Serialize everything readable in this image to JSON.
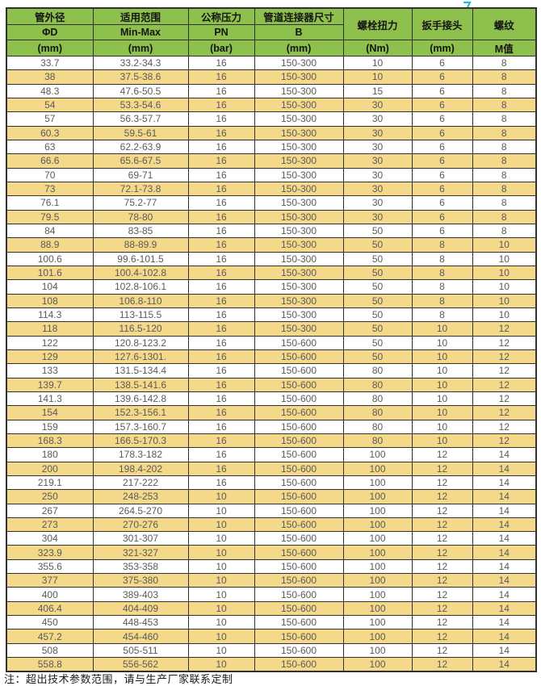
{
  "page": {
    "note": "注：超出技术参数范围，请与生产厂家联系定制"
  },
  "colors": {
    "header_green": "#8dc04d",
    "stripe_tan": "#f5d98a",
    "border_dark": "#303030",
    "body_text_gray": "#5a5a5a",
    "cursor_cyan": "#2bb7dc"
  },
  "icons": {
    "cursor_mark": "cyan-cursor-fragment"
  },
  "table": {
    "header": {
      "groups": [
        {
          "title": "管外径",
          "sub": "ΦD",
          "unit": "(mm)"
        },
        {
          "title": "适用范围",
          "sub": "Min-Max",
          "unit": "(mm)"
        },
        {
          "title": "公称压力",
          "sub": "PN",
          "unit": "(bar)"
        },
        {
          "title": "管道连接器尺寸",
          "sub": "B",
          "unit": "(mm)"
        },
        {
          "title": "螺栓扭力",
          "sub": "",
          "unit": "(Nm)"
        },
        {
          "title": "扳手接头",
          "sub": "",
          "unit": "(mm)"
        },
        {
          "title": "螺纹",
          "sub": "",
          "unit": "M值"
        }
      ]
    },
    "rows": [
      [
        "33.7",
        "33.2-34.3",
        "16",
        "150-300",
        "10",
        "6",
        "8"
      ],
      [
        "38",
        "37.5-38.6",
        "16",
        "150-300",
        "10",
        "6",
        "8"
      ],
      [
        "48.3",
        "47.6-50.5",
        "16",
        "150-300",
        "15",
        "6",
        "8"
      ],
      [
        "54",
        "53.3-54.6",
        "16",
        "150-300",
        "30",
        "6",
        "8"
      ],
      [
        "57",
        "56.3-57.7",
        "16",
        "150-300",
        "30",
        "6",
        "8"
      ],
      [
        "60.3",
        "59.5-61",
        "16",
        "150-300",
        "30",
        "6",
        "8"
      ],
      [
        "63",
        "62.2-63.9",
        "16",
        "150-300",
        "30",
        "6",
        "8"
      ],
      [
        "66.6",
        "65.6-67.5",
        "16",
        "150-300",
        "30",
        "6",
        "8"
      ],
      [
        "70",
        "69-71",
        "16",
        "150-300",
        "30",
        "6",
        "8"
      ],
      [
        "73",
        "72.1-73.8",
        "16",
        "150-300",
        "30",
        "6",
        "8"
      ],
      [
        "76.1",
        "75.2-77",
        "16",
        "150-300",
        "30",
        "6",
        "8"
      ],
      [
        "79.5",
        "78-80",
        "16",
        "150-300",
        "30",
        "6",
        "8"
      ],
      [
        "84",
        "83-85",
        "16",
        "150-300",
        "50",
        "6",
        "8"
      ],
      [
        "88.9",
        "88-89.9",
        "16",
        "150-300",
        "50",
        "8",
        "10"
      ],
      [
        "100.6",
        "99.6-101.5",
        "16",
        "150-300",
        "50",
        "8",
        "10"
      ],
      [
        "101.6",
        "100.4-102.8",
        "16",
        "150-300",
        "50",
        "8",
        "10"
      ],
      [
        "104",
        "102.8-106.1",
        "16",
        "150-300",
        "50",
        "8",
        "10"
      ],
      [
        "108",
        "106.8-110",
        "16",
        "150-300",
        "50",
        "8",
        "10"
      ],
      [
        "114.3",
        "113-115.5",
        "16",
        "150-300",
        "50",
        "8",
        "10"
      ],
      [
        "118",
        "116.5-120",
        "16",
        "150-300",
        "50",
        "10",
        "12"
      ],
      [
        "122",
        "120.8-123.2",
        "16",
        "150-600",
        "50",
        "10",
        "12"
      ],
      [
        "129",
        "127.6-1301.",
        "16",
        "150-600",
        "50",
        "10",
        "12"
      ],
      [
        "133",
        "131.5-134.4",
        "16",
        "150-600",
        "80",
        "10",
        "12"
      ],
      [
        "139.7",
        "138.5-141.6",
        "16",
        "150-600",
        "80",
        "10",
        "12"
      ],
      [
        "141.3",
        "139.6-142.8",
        "16",
        "150-600",
        "80",
        "10",
        "12"
      ],
      [
        "154",
        "152.3-156.1",
        "16",
        "150-600",
        "80",
        "10",
        "12"
      ],
      [
        "159",
        "157.3-160.7",
        "16",
        "150-600",
        "80",
        "10",
        "12"
      ],
      [
        "168.3",
        "166.5-170.3",
        "16",
        "150-600",
        "80",
        "10",
        "12"
      ],
      [
        "180",
        "178.3-182",
        "16",
        "150-600",
        "100",
        "12",
        "14"
      ],
      [
        "200",
        "198.4-202",
        "16",
        "150-600",
        "100",
        "12",
        "14"
      ],
      [
        "219.1",
        "217-222",
        "16",
        "150-600",
        "100",
        "12",
        "14"
      ],
      [
        "250",
        "248-253",
        "10",
        "150-600",
        "100",
        "12",
        "14"
      ],
      [
        "267",
        "264.5-270",
        "10",
        "150-600",
        "100",
        "12",
        "14"
      ],
      [
        "273",
        "270-276",
        "10",
        "150-600",
        "100",
        "12",
        "14"
      ],
      [
        "304",
        "301-307",
        "10",
        "150-600",
        "100",
        "12",
        "14"
      ],
      [
        "323.9",
        "321-327",
        "10",
        "150-600",
        "100",
        "12",
        "14"
      ],
      [
        "355.6",
        "353-358",
        "10",
        "150-600",
        "100",
        "12",
        "14"
      ],
      [
        "377",
        "375-380",
        "10",
        "150-600",
        "100",
        "12",
        "14"
      ],
      [
        "400",
        "389-403",
        "10",
        "150-600",
        "100",
        "12",
        "14"
      ],
      [
        "406.4",
        "404-409",
        "10",
        "150-600",
        "100",
        "12",
        "14"
      ],
      [
        "450",
        "448-453",
        "10",
        "150-600",
        "100",
        "12",
        "14"
      ],
      [
        "457.2",
        "454-460",
        "10",
        "150-600",
        "100",
        "12",
        "14"
      ],
      [
        "508",
        "505-511",
        "10",
        "150-600",
        "100",
        "12",
        "14"
      ],
      [
        "558.8",
        "556-562",
        "10",
        "150-600",
        "100",
        "12",
        "14"
      ]
    ]
  }
}
